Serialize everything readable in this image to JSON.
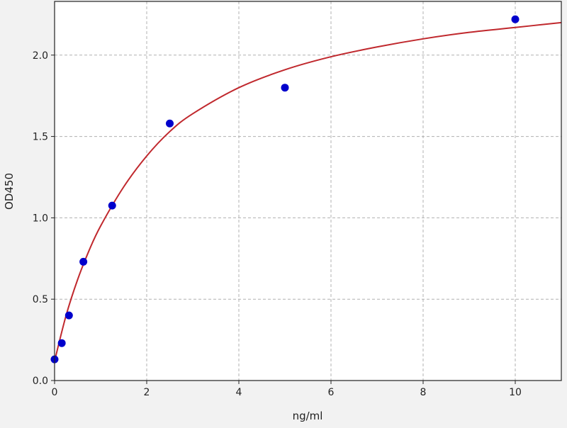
{
  "chart_data": {
    "type": "scatter",
    "title": "",
    "xlabel": "ng/ml",
    "ylabel": "OD450",
    "xlim": [
      0,
      11
    ],
    "ylim": [
      0,
      2.33
    ],
    "xticks": [
      0,
      2,
      4,
      6,
      8,
      10
    ],
    "yticks": [
      0.0,
      0.5,
      1.0,
      1.5,
      2.0
    ],
    "xtick_labels": [
      "0",
      "2",
      "4",
      "6",
      "8",
      "10"
    ],
    "ytick_labels": [
      "0.0",
      "0.5",
      "1.0",
      "1.5",
      "2.0"
    ],
    "grid": true,
    "series": [
      {
        "type": "scatter",
        "color": "#0000cc",
        "x": [
          0,
          0.156,
          0.3125,
          0.625,
          1.25,
          2.5,
          5,
          10
        ],
        "y": [
          0.13,
          0.23,
          0.4,
          0.73,
          1.075,
          1.58,
          1.8,
          2.22
        ]
      },
      {
        "type": "line",
        "color": "#c0282d",
        "x": [
          0,
          0.25,
          0.5,
          0.75,
          1,
          1.5,
          2,
          2.5,
          3,
          4,
          5,
          6,
          7,
          8,
          9,
          10,
          11
        ],
        "y": [
          0.12,
          0.4,
          0.62,
          0.8,
          0.95,
          1.19,
          1.38,
          1.53,
          1.64,
          1.8,
          1.91,
          1.99,
          2.05,
          2.1,
          2.14,
          2.17,
          2.2
        ]
      }
    ]
  }
}
